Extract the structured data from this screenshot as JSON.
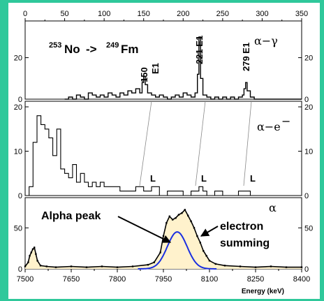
{
  "chart_data": {
    "type": "line",
    "reaction": {
      "parent_mass": "253",
      "parent": "No",
      "arrow": "->",
      "daughter_mass": "249",
      "daughter": "Fm"
    },
    "top_axis": {
      "range": [
        0,
        350
      ],
      "ticks": [
        "0",
        "50",
        "100",
        "150",
        "200",
        "250",
        "300",
        "350"
      ]
    },
    "bottom_axis": {
      "label": "Energy  (keV)",
      "range": [
        7500,
        8400
      ],
      "ticks": [
        "7500",
        "7650",
        "7800",
        "7950",
        "8100",
        "8250",
        "8400"
      ]
    },
    "panels": [
      {
        "name": "alpha-gamma",
        "label": "α−γ",
        "ylim": [
          0,
          35
        ],
        "yticks": [
          "0",
          "20"
        ],
        "peak_labels": [
          {
            "text": "150",
            "sub": "E1",
            "x": 150
          },
          {
            "text": "221 E1",
            "x": 221
          },
          {
            "text": "279 E1",
            "x": 279
          }
        ],
        "series": {
          "x": [
            50,
            55,
            60,
            65,
            70,
            75,
            80,
            85,
            90,
            95,
            100,
            105,
            110,
            115,
            120,
            125,
            130,
            135,
            140,
            145,
            148,
            150,
            152,
            155,
            160,
            165,
            170,
            175,
            180,
            185,
            190,
            195,
            200,
            205,
            210,
            215,
            218,
            220,
            222,
            225,
            230,
            235,
            240,
            245,
            250,
            255,
            260,
            265,
            270,
            275,
            277,
            279,
            281,
            285,
            290,
            300,
            320,
            340,
            350
          ],
          "y": [
            0,
            1,
            0,
            2,
            1,
            0,
            3,
            2,
            1,
            2,
            1,
            3,
            2,
            1,
            3,
            2,
            4,
            3,
            5,
            3,
            8,
            11,
            7,
            3,
            2,
            1,
            2,
            1,
            0,
            1,
            2,
            1,
            3,
            2,
            1,
            3,
            12,
            30,
            10,
            2,
            1,
            0,
            1,
            0,
            1,
            0,
            1,
            0,
            1,
            2,
            5,
            8,
            4,
            1,
            0,
            0,
            0,
            0,
            0
          ]
        }
      },
      {
        "name": "alpha-electron",
        "label": "α−e",
        "label_sup": "−",
        "ylim": [
          0,
          20
        ],
        "yticks": [
          "0",
          "10",
          "20"
        ],
        "line_labels": [
          "L",
          "L",
          "L"
        ],
        "series": {
          "x": [
            0,
            5,
            10,
            15,
            20,
            25,
            30,
            35,
            40,
            45,
            50,
            55,
            60,
            65,
            70,
            75,
            80,
            85,
            90,
            95,
            100,
            110,
            120,
            130,
            140,
            150,
            160,
            170,
            180,
            190,
            200,
            210,
            215,
            220,
            225,
            230,
            240,
            250,
            260,
            270,
            275,
            280,
            285,
            290,
            300,
            320,
            340,
            350
          ],
          "y": [
            0,
            2,
            12,
            18,
            16,
            15,
            13,
            9,
            15,
            6,
            5,
            4,
            7,
            3,
            5,
            3,
            2,
            3,
            2,
            3,
            2,
            2,
            1,
            1,
            2,
            1,
            2,
            0,
            1,
            1,
            0,
            1,
            1,
            2,
            1,
            0,
            1,
            0,
            0,
            1,
            1,
            1,
            0,
            0,
            0,
            0,
            0,
            0
          ]
        }
      },
      {
        "name": "alpha",
        "label": "α",
        "ylim": [
          0,
          80
        ],
        "yticks": [
          "0",
          "50"
        ],
        "annotations": [
          "Alpha peak",
          "electron",
          "summing"
        ],
        "series": {
          "x": [
            7500,
            7510,
            7515,
            7520,
            7525,
            7530,
            7535,
            7540,
            7550,
            7570,
            7600,
            7650,
            7700,
            7750,
            7800,
            7850,
            7900,
            7920,
            7940,
            7950,
            7960,
            7970,
            7980,
            7990,
            8000,
            8010,
            8020,
            8030,
            8040,
            8050,
            8060,
            8070,
            8080,
            8090,
            8100,
            8120,
            8150,
            8200,
            8250,
            8300,
            8350,
            8400
          ],
          "y": [
            3,
            8,
            16,
            20,
            24,
            26,
            18,
            10,
            4,
            3,
            2,
            3,
            2,
            3,
            2,
            3,
            5,
            8,
            20,
            40,
            56,
            64,
            60,
            62,
            66,
            68,
            72,
            65,
            58,
            50,
            40,
            32,
            22,
            16,
            10,
            6,
            4,
            3,
            2,
            3,
            2,
            2
          ]
        },
        "fit": {
          "center": 7995,
          "sigma": 32,
          "amplitude": 45
        }
      }
    ]
  }
}
